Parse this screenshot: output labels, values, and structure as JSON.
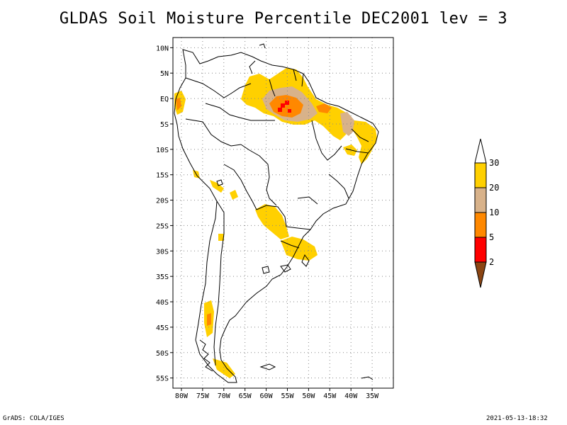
{
  "title": "GLDAS Soil Moisture Percentile DEC2001 lev = 3",
  "footer": {
    "left": "GrADS: COLA/IGES",
    "right": "2021-05-13-18:32"
  },
  "map": {
    "lon_range": [
      -82,
      -30
    ],
    "lat_range": [
      -57,
      12
    ],
    "lat_labels": [
      "10N",
      "5N",
      "EQ",
      "5S",
      "10S",
      "15S",
      "20S",
      "25S",
      "30S",
      "35S",
      "40S",
      "45S",
      "50S",
      "55S"
    ],
    "lat_values": [
      10,
      5,
      0,
      -5,
      -10,
      -15,
      -20,
      -25,
      -30,
      -35,
      -40,
      -45,
      -50,
      -55
    ],
    "lon_labels": [
      "80W",
      "75W",
      "70W",
      "65W",
      "60W",
      "55W",
      "50W",
      "45W",
      "40W",
      "35W"
    ],
    "lon_values": [
      -80,
      -75,
      -70,
      -65,
      -60,
      -55,
      -50,
      -45,
      -40,
      -35
    ],
    "grid": true
  },
  "colorbar": {
    "labels": [
      "30",
      "20",
      "10",
      "5",
      "2"
    ],
    "classes": [
      {
        "color": "#ffffff",
        "range": ">30"
      },
      {
        "color": "#ffd000",
        "range": "20-30"
      },
      {
        "color": "#d8b28a",
        "range": "10-20"
      },
      {
        "color": "#ff8800",
        "range": "5-10"
      },
      {
        "color": "#ff0000",
        "range": "2-5"
      },
      {
        "color": "#8b4513",
        "range": "<2"
      }
    ]
  }
}
